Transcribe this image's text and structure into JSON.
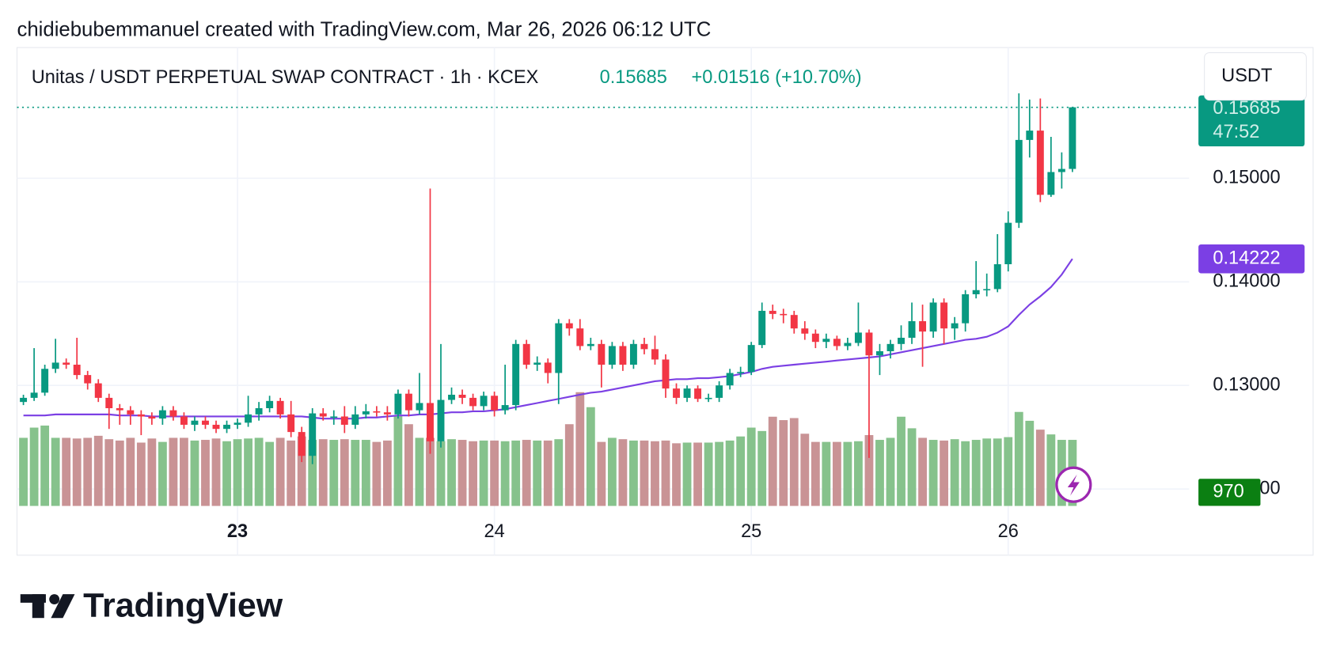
{
  "chart_data": {
    "type": "candlestick",
    "attribution": "chidiebubemmanuel created with TradingView.com, Mar 26, 2026 06:12 UTC",
    "title": "Unitas / USDT PERPETUAL SWAP CONTRACT · 1h · KCEX",
    "change": "+0.01516 (+10.70%)",
    "currency": "USDT",
    "countdown": "47:52",
    "brand": "TradingView",
    "up_color": "#089981",
    "down_color": "#f23645",
    "ma_color": "#7b3fe4",
    "volume_up_color": "#86c28c",
    "volume_down_color": "#c99395",
    "xlim": [
      -0.6,
      108.9
    ],
    "xticks": [
      {
        "value": 20,
        "label": "23"
      },
      {
        "value": 44,
        "label": "24"
      },
      {
        "value": 68,
        "label": "25"
      },
      {
        "value": 92,
        "label": "26"
      }
    ],
    "ylim": [
      0.11361,
      0.16262
    ],
    "yticks": [
      {
        "value": 0.12,
        "label": "0.12000"
      },
      {
        "value": 0.13,
        "label": "0.13000"
      },
      {
        "value": 0.14,
        "label": "0.14000"
      },
      {
        "value": 0.15,
        "label": "0.15000"
      }
    ],
    "grid": true,
    "open": [
      0.1284,
      0.1288,
      0.1293,
      0.1316,
      0.1322,
      0.132,
      0.131,
      0.1302,
      0.1288,
      0.1278,
      0.1276,
      0.1272,
      0.127,
      0.1268,
      0.1276,
      0.127,
      0.1262,
      0.1266,
      0.1262,
      0.1258,
      0.1262,
      0.1264,
      0.1272,
      0.1278,
      0.1285,
      0.1272,
      0.1255,
      0.1232,
      0.1273,
      0.127,
      0.127,
      0.1262,
      0.1272,
      0.1275,
      0.1274,
      0.1272,
      0.1292,
      0.1276,
      0.1283,
      0.1246,
      0.1286,
      0.1291,
      0.1288,
      0.128,
      0.129,
      0.1276,
      0.1281,
      0.134,
      0.132,
      0.1322,
      0.1312,
      0.136,
      0.1355,
      0.1338,
      0.134,
      0.132,
      0.1338,
      0.132,
      0.134,
      0.1335,
      0.1325,
      0.1297,
      0.1288,
      0.1297,
      0.1287,
      0.1288,
      0.13,
      0.1312,
      0.1313,
      0.1339,
      0.1372,
      0.1369,
      0.1368,
      0.1355,
      0.135,
      0.1342,
      0.1345,
      0.1338,
      0.1341,
      0.1351,
      0.1329,
      0.1333,
      0.134,
      0.1346,
      0.1362,
      0.1352,
      0.138,
      0.1355,
      0.136,
      0.1388,
      0.1392,
      0.1393,
      0.1417,
      0.1457,
      0.1537,
      0.1546,
      0.1484,
      0.1506,
      0.1509
    ],
    "high": [
      0.1291,
      0.1336,
      0.132,
      0.1345,
      0.1326,
      0.1346,
      0.1314,
      0.1306,
      0.1292,
      0.1282,
      0.128,
      0.1276,
      0.1274,
      0.128,
      0.128,
      0.1274,
      0.127,
      0.127,
      0.1266,
      0.1266,
      0.1268,
      0.129,
      0.1284,
      0.129,
      0.1288,
      0.1285,
      0.126,
      0.1278,
      0.1278,
      0.1276,
      0.128,
      0.128,
      0.1282,
      0.128,
      0.128,
      0.1296,
      0.1296,
      0.1312,
      0.149,
      0.134,
      0.1298,
      0.1296,
      0.1292,
      0.1294,
      0.1294,
      0.132,
      0.1344,
      0.1344,
      0.1328,
      0.1326,
      0.1364,
      0.1364,
      0.1364,
      0.1346,
      0.1344,
      0.1342,
      0.1342,
      0.1344,
      0.1346,
      0.1348,
      0.133,
      0.1302,
      0.13,
      0.13,
      0.1292,
      0.1304,
      0.1316,
      0.1318,
      0.1342,
      0.138,
      0.1378,
      0.1374,
      0.1372,
      0.1362,
      0.1354,
      0.135,
      0.1348,
      0.1346,
      0.138,
      0.1354,
      0.134,
      0.1344,
      0.1358,
      0.138,
      0.1378,
      0.1384,
      0.1384,
      0.1366,
      0.1392,
      0.142,
      0.1408,
      0.1446,
      0.1468,
      0.1582,
      0.1576,
      0.1577,
      0.154,
      0.1525,
      0.15685
    ],
    "low": [
      0.1281,
      0.1285,
      0.129,
      0.1312,
      0.1316,
      0.1306,
      0.1296,
      0.1284,
      0.1258,
      0.1262,
      0.1262,
      0.1252,
      0.1262,
      0.1262,
      0.1266,
      0.1258,
      0.1256,
      0.1258,
      0.1254,
      0.1254,
      0.1258,
      0.126,
      0.1266,
      0.1274,
      0.1268,
      0.125,
      0.1226,
      0.1224,
      0.1266,
      0.1262,
      0.1254,
      0.1258,
      0.1268,
      0.127,
      0.1266,
      0.1268,
      0.127,
      0.1272,
      0.1234,
      0.124,
      0.1282,
      0.1282,
      0.1276,
      0.1276,
      0.127,
      0.1272,
      0.1276,
      0.1316,
      0.1314,
      0.1302,
      0.1282,
      0.1348,
      0.1334,
      0.1334,
      0.1298,
      0.1316,
      0.1314,
      0.1316,
      0.133,
      0.132,
      0.1288,
      0.1282,
      0.1284,
      0.1284,
      0.1284,
      0.1284,
      0.1296,
      0.1308,
      0.131,
      0.1336,
      0.1364,
      0.136,
      0.135,
      0.1344,
      0.1336,
      0.1336,
      0.1334,
      0.1334,
      0.1338,
      0.123,
      0.131,
      0.1326,
      0.1334,
      0.134,
      0.1318,
      0.1346,
      0.134,
      0.1344,
      0.1352,
      0.1384,
      0.1386,
      0.139,
      0.141,
      0.1452,
      0.152,
      0.1477,
      0.1482,
      0.149,
      0.1506
    ],
    "close": [
      0.1288,
      0.1293,
      0.1316,
      0.1322,
      0.132,
      0.131,
      0.1302,
      0.1288,
      0.1278,
      0.1276,
      0.1272,
      0.127,
      0.1268,
      0.1276,
      0.127,
      0.1262,
      0.1266,
      0.1262,
      0.1258,
      0.1262,
      0.1264,
      0.1272,
      0.1278,
      0.1285,
      0.1272,
      0.1255,
      0.1232,
      0.1273,
      0.127,
      0.127,
      0.1262,
      0.1272,
      0.1275,
      0.1274,
      0.1272,
      0.1292,
      0.1276,
      0.1283,
      0.1246,
      0.1286,
      0.1291,
      0.1288,
      0.128,
      0.129,
      0.1276,
      0.1281,
      0.134,
      0.132,
      0.1322,
      0.1312,
      0.136,
      0.1355,
      0.1338,
      0.134,
      0.132,
      0.1338,
      0.132,
      0.134,
      0.1335,
      0.1325,
      0.1297,
      0.1288,
      0.1297,
      0.1287,
      0.1288,
      0.13,
      0.1312,
      0.1313,
      0.1339,
      0.1372,
      0.1369,
      0.1368,
      0.1355,
      0.135,
      0.1342,
      0.1345,
      0.1338,
      0.1341,
      0.1351,
      0.1329,
      0.1333,
      0.134,
      0.1346,
      0.1362,
      0.1352,
      0.138,
      0.1355,
      0.136,
      0.1388,
      0.1392,
      0.1393,
      0.1417,
      0.1457,
      0.1537,
      0.1546,
      0.1484,
      0.1506,
      0.1509,
      0.15685
    ],
    "volume": [
      1000,
      1150,
      1180,
      1000,
      1000,
      990,
      1000,
      1030,
      980,
      960,
      1000,
      930,
      990,
      940,
      1000,
      1000,
      960,
      970,
      990,
      950,
      980,
      990,
      1000,
      940,
      1000,
      960,
      1020,
      970,
      980,
      970,
      980,
      970,
      970,
      940,
      960,
      1330,
      1200,
      1000,
      1000,
      950,
      980,
      970,
      950,
      960,
      960,
      950,
      960,
      970,
      960,
      960,
      980,
      1200,
      1670,
      1450,
      940,
      1000,
      980,
      960,
      960,
      950,
      960,
      920,
      930,
      930,
      930,
      940,
      960,
      1020,
      1150,
      1100,
      1310,
      1260,
      1290,
      1060,
      940,
      940,
      940,
      940,
      950,
      1040,
      970,
      1000,
      1310,
      1140,
      1000,
      970,
      960,
      980,
      950,
      970,
      990,
      990,
      1010,
      1380,
      1250,
      1120,
      1050,
      970,
      970
    ],
    "ma": [
      0.1271,
      0.1271,
      0.1271,
      0.1272,
      0.1272,
      0.1272,
      0.1272,
      0.1272,
      0.1272,
      0.1271,
      0.1271,
      0.1271,
      0.127,
      0.127,
      0.127,
      0.127,
      0.127,
      0.127,
      0.127,
      0.127,
      0.127,
      0.127,
      0.127,
      0.127,
      0.127,
      0.127,
      0.127,
      0.1269,
      0.1268,
      0.1268,
      0.1268,
      0.1268,
      0.1269,
      0.1269,
      0.127,
      0.1271,
      0.1271,
      0.1272,
      0.1272,
      0.1273,
      0.1274,
      0.1274,
      0.1275,
      0.1275,
      0.1276,
      0.1277,
      0.1279,
      0.1281,
      0.1283,
      0.1285,
      0.1287,
      0.1289,
      0.1291,
      0.1293,
      0.1294,
      0.1296,
      0.1298,
      0.13,
      0.1302,
      0.1304,
      0.1305,
      0.1306,
      0.1306,
      0.1307,
      0.1307,
      0.1308,
      0.1309,
      0.1311,
      0.1313,
      0.1316,
      0.1318,
      0.1319,
      0.132,
      0.1321,
      0.1322,
      0.1323,
      0.1324,
      0.1325,
      0.1326,
      0.1327,
      0.1328,
      0.133,
      0.1332,
      0.1334,
      0.1336,
      0.1338,
      0.134,
      0.1342,
      0.1344,
      0.1345,
      0.1347,
      0.1351,
      0.1357,
      0.1368,
      0.1378,
      0.1386,
      0.1395,
      0.1407,
      0.14222
    ]
  }
}
